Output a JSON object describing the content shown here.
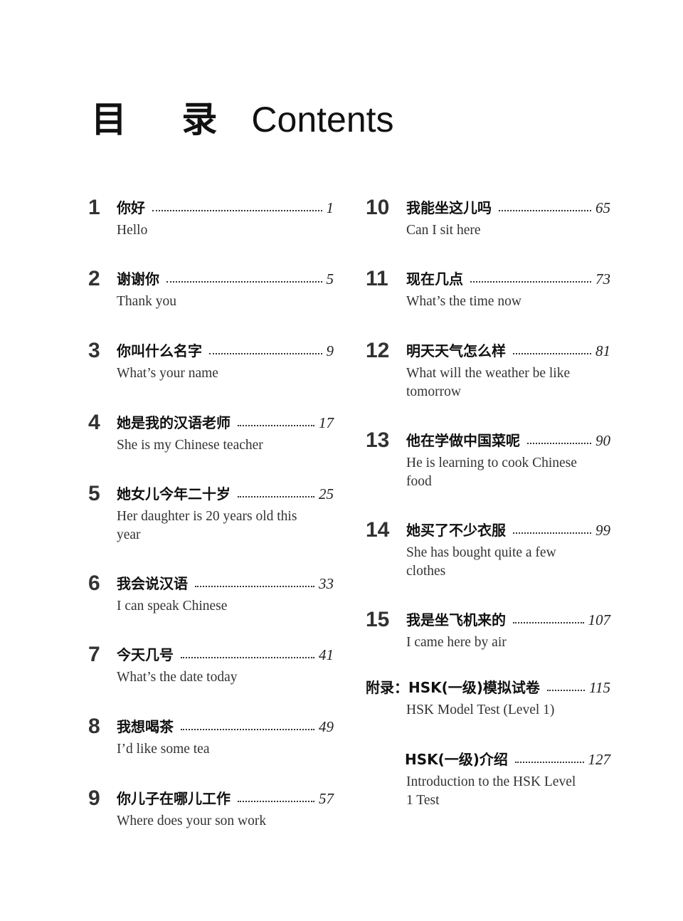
{
  "header": {
    "title_zh": "目 录",
    "title_en": "Contents"
  },
  "left_column": [
    {
      "number": "1",
      "title_zh": "你好",
      "page": "1",
      "title_en": "Hello"
    },
    {
      "number": "2",
      "title_zh": "谢谢你",
      "page": "5",
      "title_en": "Thank you"
    },
    {
      "number": "3",
      "title_zh": "你叫什么名字",
      "page": "9",
      "title_en": "What’s your name"
    },
    {
      "number": "4",
      "title_zh": "她是我的汉语老师",
      "page": "17",
      "title_en": "She is my Chinese teacher"
    },
    {
      "number": "5",
      "title_zh": "她女儿今年二十岁",
      "page": "25",
      "title_en": "Her daughter is 20 years old this year"
    },
    {
      "number": "6",
      "title_zh": "我会说汉语",
      "page": "33",
      "title_en": "I can speak Chinese"
    },
    {
      "number": "7",
      "title_zh": "今天几号",
      "page": "41",
      "title_en": "What’s the date today"
    },
    {
      "number": "8",
      "title_zh": "我想喝茶",
      "page": "49",
      "title_en": "I’d like some tea"
    },
    {
      "number": "9",
      "title_zh": "你儿子在哪儿工作",
      "page": "57",
      "title_en": "Where does your son work"
    }
  ],
  "right_column": [
    {
      "number": "10",
      "title_zh": "我能坐这儿吗",
      "page": "65",
      "title_en": "Can I sit here"
    },
    {
      "number": "11",
      "title_zh": "现在几点",
      "page": "73",
      "title_en": "What’s the time now"
    },
    {
      "number": "12",
      "title_zh": "明天天气怎么样",
      "page": "81",
      "title_en": "What will the weather be like tomorrow"
    },
    {
      "number": "13",
      "title_zh": "他在学做中国菜呢",
      "page": "90",
      "title_en": "He is learning to cook Chinese food"
    },
    {
      "number": "14",
      "title_zh": "她买了不少衣服",
      "page": "99",
      "title_en": "She has bought quite a few clothes"
    },
    {
      "number": "15",
      "title_zh": "我是坐飞机来的",
      "page": "107",
      "title_en": "I came here by air"
    },
    {
      "number": "",
      "title_zh": "附录：HSK(一级)模拟试卷",
      "page": "115",
      "title_en": "HSK Model Test (Level 1)"
    },
    {
      "number": "",
      "title_zh": "HSK(一级)介绍",
      "page": "127",
      "title_en": "Introduction to the HSK Level 1 Test"
    }
  ]
}
